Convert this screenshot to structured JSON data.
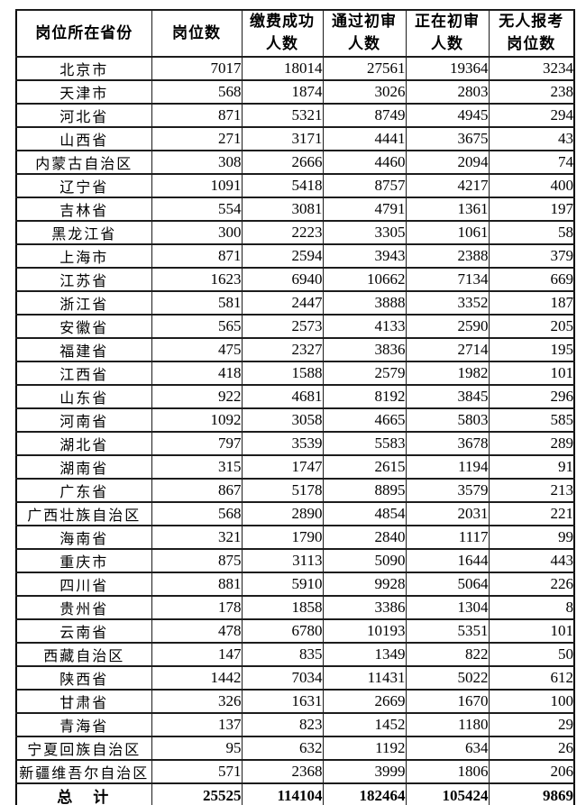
{
  "table": {
    "title_semantic": "positions-by-province-statistics",
    "headers": [
      {
        "lines": [
          "岗位所在省份"
        ]
      },
      {
        "lines": [
          "岗位数"
        ]
      },
      {
        "lines": [
          "缴费成功",
          "人数"
        ]
      },
      {
        "lines": [
          "通过初审",
          "人数"
        ]
      },
      {
        "lines": [
          "正在初审",
          "人数"
        ]
      },
      {
        "lines": [
          "无人报考",
          "岗位数"
        ]
      }
    ],
    "rows": [
      [
        "北京市",
        "7017",
        "18014",
        "27561",
        "19364",
        "3234"
      ],
      [
        "天津市",
        "568",
        "1874",
        "3026",
        "2803",
        "238"
      ],
      [
        "河北省",
        "871",
        "5321",
        "8749",
        "4945",
        "294"
      ],
      [
        "山西省",
        "271",
        "3171",
        "4441",
        "3675",
        "43"
      ],
      [
        "内蒙古自治区",
        "308",
        "2666",
        "4460",
        "2094",
        "74"
      ],
      [
        "辽宁省",
        "1091",
        "5418",
        "8757",
        "4217",
        "400"
      ],
      [
        "吉林省",
        "554",
        "3081",
        "4791",
        "1361",
        "197"
      ],
      [
        "黑龙江省",
        "300",
        "2223",
        "3305",
        "1061",
        "58"
      ],
      [
        "上海市",
        "871",
        "2594",
        "3943",
        "2388",
        "379"
      ],
      [
        "江苏省",
        "1623",
        "6940",
        "10662",
        "7134",
        "669"
      ],
      [
        "浙江省",
        "581",
        "2447",
        "3888",
        "3352",
        "187"
      ],
      [
        "安徽省",
        "565",
        "2573",
        "4133",
        "2590",
        "205"
      ],
      [
        "福建省",
        "475",
        "2327",
        "3836",
        "2714",
        "195"
      ],
      [
        "江西省",
        "418",
        "1588",
        "2579",
        "1982",
        "101"
      ],
      [
        "山东省",
        "922",
        "4681",
        "8192",
        "3845",
        "296"
      ],
      [
        "河南省",
        "1092",
        "3058",
        "4665",
        "5803",
        "585"
      ],
      [
        "湖北省",
        "797",
        "3539",
        "5583",
        "3678",
        "289"
      ],
      [
        "湖南省",
        "315",
        "1747",
        "2615",
        "1194",
        "91"
      ],
      [
        "广东省",
        "867",
        "5178",
        "8895",
        "3579",
        "213"
      ],
      [
        "广西壮族自治区",
        "568",
        "2890",
        "4854",
        "2031",
        "221"
      ],
      [
        "海南省",
        "321",
        "1790",
        "2840",
        "1117",
        "99"
      ],
      [
        "重庆市",
        "875",
        "3113",
        "5090",
        "1644",
        "443"
      ],
      [
        "四川省",
        "881",
        "5910",
        "9928",
        "5064",
        "226"
      ],
      [
        "贵州省",
        "178",
        "1858",
        "3386",
        "1304",
        "8"
      ],
      [
        "云南省",
        "478",
        "6780",
        "10193",
        "5351",
        "101"
      ],
      [
        "西藏自治区",
        "147",
        "835",
        "1349",
        "822",
        "50"
      ],
      [
        "陕西省",
        "1442",
        "7034",
        "11431",
        "5022",
        "612"
      ],
      [
        "甘肃省",
        "326",
        "1631",
        "2669",
        "1670",
        "100"
      ],
      [
        "青海省",
        "137",
        "823",
        "1452",
        "1180",
        "29"
      ],
      [
        "宁夏回族自治区",
        "95",
        "632",
        "1192",
        "634",
        "26"
      ],
      [
        "新疆维吾尔自治区",
        "571",
        "2368",
        "3999",
        "1806",
        "206"
      ]
    ],
    "total_row": [
      "总　计",
      "25525",
      "114104",
      "182464",
      "105424",
      "9869"
    ],
    "colors": {
      "text": "#000000",
      "border": "#1c1c1c",
      "background": "#ffffff"
    }
  }
}
